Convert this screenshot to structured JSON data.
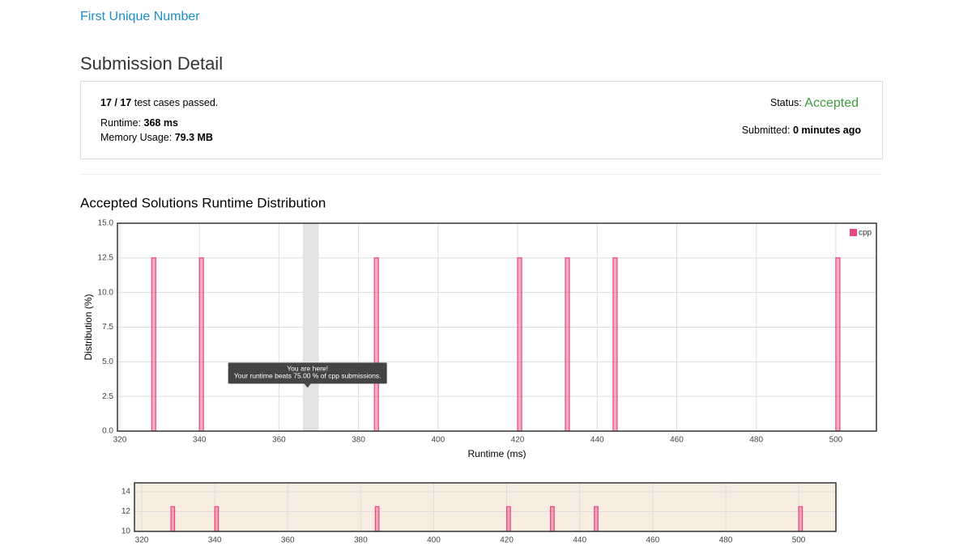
{
  "header": {
    "problem": "First Unique Number",
    "title": "Submission Detail"
  },
  "summary": {
    "passed": "17 / 17",
    "passed_suffix": "test cases passed.",
    "runtime_label": "Runtime:",
    "runtime": "368 ms",
    "memory_label": "Memory Usage:",
    "memory": "79.3 MB",
    "status_label": "Status:",
    "status": "Accepted",
    "submitted_label": "Submitted:",
    "submitted": "0 minutes ago"
  },
  "section_title": "Accepted Solutions Runtime Distribution",
  "chart_data": [
    {
      "type": "bar",
      "x": [
        328,
        340,
        384,
        420,
        432,
        444,
        500
      ],
      "series": [
        {
          "name": "cpp",
          "color": "#e8467f",
          "values": [
            12.5,
            12.5,
            12.5,
            12.5,
            12.5,
            12.5,
            12.5
          ]
        }
      ],
      "xlabel": "Runtime (ms)",
      "ylabel": "Distribution (%)",
      "xlim": [
        319.4,
        510.2
      ],
      "xticks": [
        320,
        340,
        360,
        380,
        400,
        420,
        440,
        460,
        480,
        500
      ],
      "ylim": [
        0,
        15
      ],
      "yticks": [
        {
          "value": 0,
          "label": "0.0"
        },
        2.5,
        {
          "value": 5,
          "label": "5.0"
        },
        7.5,
        {
          "value": 10,
          "label": "10.0"
        },
        12.5,
        {
          "value": 15,
          "label": "15.0"
        }
      ],
      "grid": true,
      "legend": "top-right",
      "highlight": [
        366,
        370
      ],
      "annotation": [
        "You are here!",
        "Your runtime beats 75.00 % of cpp submissions."
      ]
    },
    {
      "type": "bar",
      "x": [
        328,
        340,
        384,
        420,
        432,
        444,
        500
      ],
      "series": [
        {
          "color": "#e8467f",
          "values": [
            12.5,
            12.5,
            12.5,
            12.5,
            12.5,
            12.5,
            12.5
          ]
        }
      ],
      "xlim": [
        318,
        510.2
      ],
      "xticks": [
        320,
        340,
        360,
        380,
        400,
        420,
        440,
        460,
        480,
        500
      ],
      "ylim": [
        10,
        14.9
      ],
      "yticks": [
        10,
        12,
        14
      ],
      "grid": true
    }
  ]
}
